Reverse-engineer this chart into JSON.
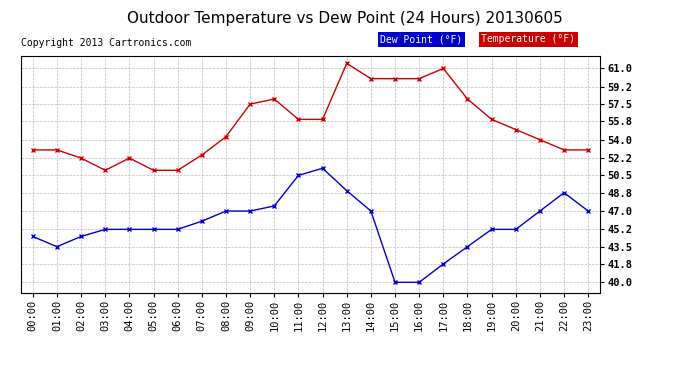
{
  "title": "Outdoor Temperature vs Dew Point (24 Hours) 20130605",
  "copyright": "Copyright 2013 Cartronics.com",
  "hours": [
    "00:00",
    "01:00",
    "02:00",
    "03:00",
    "04:00",
    "05:00",
    "06:00",
    "07:00",
    "08:00",
    "09:00",
    "10:00",
    "11:00",
    "12:00",
    "13:00",
    "14:00",
    "15:00",
    "16:00",
    "17:00",
    "18:00",
    "19:00",
    "20:00",
    "21:00",
    "22:00",
    "23:00"
  ],
  "temperature": [
    53.0,
    53.0,
    52.2,
    51.0,
    52.2,
    51.0,
    51.0,
    52.5,
    54.3,
    57.5,
    58.0,
    56.0,
    56.0,
    61.5,
    60.0,
    60.0,
    60.0,
    61.0,
    58.0,
    56.0,
    55.0,
    54.0,
    53.0,
    53.0
  ],
  "dew_point": [
    44.5,
    43.5,
    44.5,
    45.2,
    45.2,
    45.2,
    45.2,
    46.0,
    47.0,
    47.0,
    47.5,
    50.5,
    51.2,
    49.0,
    47.0,
    40.0,
    40.0,
    41.8,
    43.5,
    45.2,
    45.2,
    47.0,
    48.8,
    47.0
  ],
  "ylim": [
    39.0,
    62.2
  ],
  "yticks": [
    40.0,
    41.8,
    43.5,
    45.2,
    47.0,
    48.8,
    50.5,
    52.2,
    54.0,
    55.8,
    57.5,
    59.2,
    61.0
  ],
  "temp_color": "#cc0000",
  "dew_color": "#0000cc",
  "bg_color": "#ffffff",
  "grid_color": "#bbbbbb",
  "legend_dew_bg": "#0000cc",
  "legend_temp_bg": "#cc0000",
  "title_fontsize": 11,
  "copyright_fontsize": 7,
  "tick_fontsize": 7.5
}
